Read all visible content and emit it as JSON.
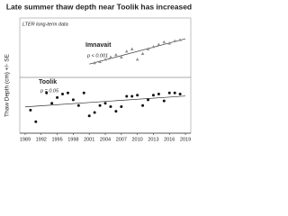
{
  "chart_data": {
    "type": "scatter",
    "title": "Late summer thaw depth near Toolik has increased",
    "subtitle": "LTER long-term data",
    "y_label": "Thaw Depth (cm) +/- SE",
    "xlim": [
      1988,
      2020
    ],
    "xticks": [
      1989,
      1992,
      1995,
      1998,
      2001,
      2004,
      2007,
      2010,
      2013,
      2016,
      2019
    ],
    "ylim": [
      0,
      100
    ],
    "trendline": true,
    "series": [
      {
        "name": "Imnavait",
        "annotation": "p < 0.001",
        "color": "#8c8c8c",
        "marker": "triangle",
        "x": [
          2002,
          2003,
          2004,
          2005,
          2006,
          2007,
          2008,
          2009,
          2010,
          2011,
          2012,
          2013,
          2014,
          2015,
          2016,
          2017,
          2018
        ],
        "values": [
          61,
          62,
          64,
          66,
          68,
          66,
          71,
          73,
          64,
          69,
          73,
          75,
          77,
          79,
          78,
          80,
          81
        ]
      },
      {
        "name": "Toolik",
        "annotation": "p = 0.05",
        "color": "#111111",
        "marker": "circle",
        "x": [
          1990,
          1991,
          1993,
          1994,
          1995,
          1996,
          1997,
          1998,
          1999,
          2000,
          2001,
          2002,
          2003,
          2004,
          2005,
          2006,
          2007,
          2008,
          2009,
          2010,
          2011,
          2012,
          2013,
          2014,
          2015,
          2016,
          2017,
          2018
        ],
        "values": [
          20,
          10,
          35,
          26,
          31,
          34,
          35,
          29,
          24,
          35,
          15,
          18,
          24,
          26,
          23,
          19,
          23,
          32,
          32,
          33,
          24,
          29,
          33,
          34,
          28,
          35,
          35,
          34
        ]
      }
    ]
  }
}
